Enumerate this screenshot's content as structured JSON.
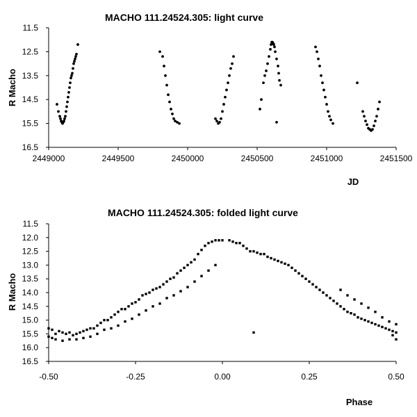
{
  "chart_data": [
    {
      "type": "scatter",
      "title": "MACHO 111.24524.305: light curve",
      "xlabel": "JD",
      "ylabel": "R Macho",
      "xlim": [
        2449000,
        2451500
      ],
      "ylim": [
        11.5,
        16.5
      ],
      "y_inverted": true,
      "grid": false,
      "x_ticks": [
        "2449000",
        "2449500",
        "2450000",
        "2450500",
        "2451000",
        "2451500"
      ],
      "y_ticks": [
        "11.5",
        "12.5",
        "13.5",
        "14.5",
        "15.5",
        "16.5"
      ],
      "marker_color": "#000000",
      "series": [
        {
          "points": [
            [
              2449060,
              14.7
            ],
            [
              2449070,
              15.0
            ],
            [
              2449080,
              15.2
            ],
            [
              2449085,
              15.3
            ],
            [
              2449090,
              15.4
            ],
            [
              2449095,
              15.45
            ],
            [
              2449100,
              15.5
            ],
            [
              2449105,
              15.45
            ],
            [
              2449110,
              15.4
            ],
            [
              2449115,
              15.3
            ],
            [
              2449120,
              15.2
            ],
            [
              2449125,
              15.0
            ],
            [
              2449130,
              14.8
            ],
            [
              2449135,
              14.6
            ],
            [
              2449140,
              14.4
            ],
            [
              2449145,
              14.2
            ],
            [
              2449150,
              14.0
            ],
            [
              2449155,
              13.8
            ],
            [
              2449160,
              13.6
            ],
            [
              2449165,
              13.5
            ],
            [
              2449170,
              13.4
            ],
            [
              2449175,
              13.2
            ],
            [
              2449180,
              13.0
            ],
            [
              2449185,
              12.9
            ],
            [
              2449190,
              12.8
            ],
            [
              2449195,
              12.7
            ],
            [
              2449200,
              12.6
            ],
            [
              2449210,
              12.2
            ],
            [
              2449800,
              12.5
            ],
            [
              2449820,
              12.7
            ],
            [
              2449830,
              13.1
            ],
            [
              2449840,
              13.5
            ],
            [
              2449850,
              13.9
            ],
            [
              2449860,
              14.3
            ],
            [
              2449870,
              14.6
            ],
            [
              2449880,
              14.9
            ],
            [
              2449890,
              15.1
            ],
            [
              2449900,
              15.3
            ],
            [
              2449910,
              15.4
            ],
            [
              2449925,
              15.45
            ],
            [
              2449940,
              15.5
            ],
            [
              2450200,
              15.3
            ],
            [
              2450210,
              15.4
            ],
            [
              2450220,
              15.5
            ],
            [
              2450230,
              15.45
            ],
            [
              2450240,
              15.3
            ],
            [
              2450250,
              15.0
            ],
            [
              2450260,
              14.7
            ],
            [
              2450270,
              14.4
            ],
            [
              2450280,
              14.1
            ],
            [
              2450290,
              13.8
            ],
            [
              2450300,
              13.5
            ],
            [
              2450310,
              13.2
            ],
            [
              2450320,
              13.0
            ],
            [
              2450330,
              12.7
            ],
            [
              2450520,
              14.9
            ],
            [
              2450530,
              14.5
            ],
            [
              2450545,
              13.8
            ],
            [
              2450555,
              13.5
            ],
            [
              2450565,
              13.3
            ],
            [
              2450575,
              13.0
            ],
            [
              2450585,
              12.7
            ],
            [
              2450595,
              12.4
            ],
            [
              2450600,
              12.2
            ],
            [
              2450605,
              12.1
            ],
            [
              2450610,
              12.1
            ],
            [
              2450615,
              12.15
            ],
            [
              2450620,
              12.2
            ],
            [
              2450625,
              12.3
            ],
            [
              2450630,
              12.5
            ],
            [
              2450640,
              12.8
            ],
            [
              2450650,
              13.1
            ],
            [
              2450655,
              13.4
            ],
            [
              2450660,
              13.7
            ],
            [
              2450670,
              13.9
            ],
            [
              2450640,
              15.45
            ],
            [
              2450920,
              12.3
            ],
            [
              2450930,
              12.5
            ],
            [
              2450940,
              12.8
            ],
            [
              2450950,
              13.1
            ],
            [
              2450960,
              13.5
            ],
            [
              2450970,
              13.8
            ],
            [
              2450980,
              14.1
            ],
            [
              2450990,
              14.4
            ],
            [
              2451000,
              14.7
            ],
            [
              2451010,
              15.0
            ],
            [
              2451020,
              15.2
            ],
            [
              2451030,
              15.35
            ],
            [
              2451045,
              15.5
            ],
            [
              2451220,
              13.8
            ],
            [
              2451260,
              15.0
            ],
            [
              2451270,
              15.2
            ],
            [
              2451280,
              15.4
            ],
            [
              2451290,
              15.55
            ],
            [
              2451300,
              15.7
            ],
            [
              2451310,
              15.75
            ],
            [
              2451320,
              15.8
            ],
            [
              2451330,
              15.75
            ],
            [
              2451340,
              15.6
            ],
            [
              2451350,
              15.4
            ],
            [
              2451360,
              15.2
            ],
            [
              2451370,
              14.9
            ],
            [
              2451380,
              14.6
            ]
          ]
        }
      ]
    },
    {
      "type": "scatter",
      "title": "MACHO 111.24524.305: folded light curve",
      "xlabel": "Phase",
      "ylabel": "R Macho",
      "xlim": [
        -0.5,
        0.5
      ],
      "ylim": [
        11.5,
        16.5
      ],
      "y_inverted": true,
      "grid": false,
      "x_ticks": [
        "-0.50",
        "-0.25",
        "0.00",
        "0.25",
        "0.50"
      ],
      "y_ticks": [
        "11.5",
        "12.0",
        "12.5",
        "13.0",
        "13.5",
        "14.0",
        "14.5",
        "15.0",
        "15.5",
        "16.0",
        "16.5"
      ],
      "marker_color": "#000000",
      "series": [
        {
          "points": [
            [
              -0.5,
              15.3
            ],
            [
              -0.49,
              15.35
            ],
            [
              -0.48,
              15.5
            ],
            [
              -0.47,
              15.4
            ],
            [
              -0.46,
              15.45
            ],
            [
              -0.45,
              15.5
            ],
            [
              -0.44,
              15.45
            ],
            [
              -0.43,
              15.55
            ],
            [
              -0.42,
              15.5
            ],
            [
              -0.41,
              15.45
            ],
            [
              -0.4,
              15.4
            ],
            [
              -0.39,
              15.35
            ],
            [
              -0.38,
              15.3
            ],
            [
              -0.37,
              15.3
            ],
            [
              -0.36,
              15.2
            ],
            [
              -0.35,
              15.1
            ],
            [
              -0.34,
              15.0
            ],
            [
              -0.33,
              15.0
            ],
            [
              -0.32,
              14.9
            ],
            [
              -0.31,
              14.8
            ],
            [
              -0.3,
              14.7
            ],
            [
              -0.29,
              14.6
            ],
            [
              -0.28,
              14.6
            ],
            [
              -0.27,
              14.5
            ],
            [
              -0.26,
              14.4
            ],
            [
              -0.25,
              14.35
            ],
            [
              -0.24,
              14.25
            ],
            [
              -0.23,
              14.1
            ],
            [
              -0.22,
              14.05
            ],
            [
              -0.21,
              14.0
            ],
            [
              -0.2,
              13.9
            ],
            [
              -0.19,
              13.85
            ],
            [
              -0.18,
              13.8
            ],
            [
              -0.17,
              13.7
            ],
            [
              -0.16,
              13.6
            ],
            [
              -0.15,
              13.5
            ],
            [
              -0.14,
              13.45
            ],
            [
              -0.13,
              13.3
            ],
            [
              -0.12,
              13.2
            ],
            [
              -0.11,
              13.1
            ],
            [
              -0.1,
              13.0
            ],
            [
              -0.09,
              12.9
            ],
            [
              -0.08,
              12.8
            ],
            [
              -0.07,
              12.6
            ],
            [
              -0.06,
              12.45
            ],
            [
              -0.05,
              12.3
            ],
            [
              -0.04,
              12.2
            ],
            [
              -0.03,
              12.15
            ],
            [
              -0.02,
              12.1
            ],
            [
              -0.01,
              12.1
            ],
            [
              0.0,
              12.1
            ],
            [
              -0.5,
              15.6
            ],
            [
              -0.49,
              15.65
            ],
            [
              -0.48,
              15.7
            ],
            [
              -0.46,
              15.75
            ],
            [
              -0.44,
              15.7
            ],
            [
              -0.42,
              15.7
            ],
            [
              -0.4,
              15.65
            ],
            [
              -0.38,
              15.6
            ],
            [
              -0.36,
              15.5
            ],
            [
              -0.34,
              15.35
            ],
            [
              -0.32,
              15.3
            ],
            [
              -0.3,
              15.2
            ],
            [
              -0.28,
              15.05
            ],
            [
              -0.26,
              14.95
            ],
            [
              -0.24,
              14.8
            ],
            [
              -0.22,
              14.65
            ],
            [
              -0.2,
              14.5
            ],
            [
              -0.18,
              14.4
            ],
            [
              -0.16,
              14.2
            ],
            [
              -0.14,
              14.1
            ],
            [
              -0.12,
              13.95
            ],
            [
              -0.1,
              13.8
            ],
            [
              -0.08,
              13.6
            ],
            [
              -0.06,
              13.4
            ],
            [
              -0.04,
              13.2
            ],
            [
              -0.02,
              13.0
            ],
            [
              0.02,
              12.1
            ],
            [
              0.03,
              12.15
            ],
            [
              0.04,
              12.2
            ],
            [
              0.05,
              12.2
            ],
            [
              0.06,
              12.3
            ],
            [
              0.07,
              12.4
            ],
            [
              0.08,
              12.5
            ],
            [
              0.09,
              12.5
            ],
            [
              0.1,
              12.55
            ],
            [
              0.11,
              12.6
            ],
            [
              0.12,
              12.6
            ],
            [
              0.13,
              12.7
            ],
            [
              0.14,
              12.75
            ],
            [
              0.15,
              12.8
            ],
            [
              0.16,
              12.85
            ],
            [
              0.17,
              12.9
            ],
            [
              0.18,
              12.95
            ],
            [
              0.19,
              13.0
            ],
            [
              0.2,
              13.1
            ],
            [
              0.21,
              13.2
            ],
            [
              0.22,
              13.3
            ],
            [
              0.23,
              13.4
            ],
            [
              0.24,
              13.5
            ],
            [
              0.25,
              13.6
            ],
            [
              0.26,
              13.7
            ],
            [
              0.27,
              13.8
            ],
            [
              0.28,
              13.9
            ],
            [
              0.29,
              14.0
            ],
            [
              0.3,
              14.1
            ],
            [
              0.31,
              14.2
            ],
            [
              0.32,
              14.3
            ],
            [
              0.33,
              14.4
            ],
            [
              0.34,
              14.5
            ],
            [
              0.35,
              14.6
            ],
            [
              0.36,
              14.7
            ],
            [
              0.37,
              14.75
            ],
            [
              0.38,
              14.8
            ],
            [
              0.39,
              14.9
            ],
            [
              0.4,
              14.95
            ],
            [
              0.41,
              15.0
            ],
            [
              0.42,
              15.05
            ],
            [
              0.43,
              15.1
            ],
            [
              0.44,
              15.15
            ],
            [
              0.45,
              15.2
            ],
            [
              0.46,
              15.25
            ],
            [
              0.47,
              15.3
            ],
            [
              0.48,
              15.35
            ],
            [
              0.49,
              15.4
            ],
            [
              0.5,
              15.45
            ],
            [
              0.34,
              13.9
            ],
            [
              0.36,
              14.1
            ],
            [
              0.38,
              14.25
            ],
            [
              0.4,
              14.4
            ],
            [
              0.42,
              14.55
            ],
            [
              0.44,
              14.7
            ],
            [
              0.46,
              14.9
            ],
            [
              0.48,
              15.05
            ],
            [
              0.5,
              15.15
            ],
            [
              0.49,
              15.55
            ],
            [
              0.5,
              15.7
            ],
            [
              0.09,
              15.45
            ]
          ]
        }
      ]
    }
  ]
}
